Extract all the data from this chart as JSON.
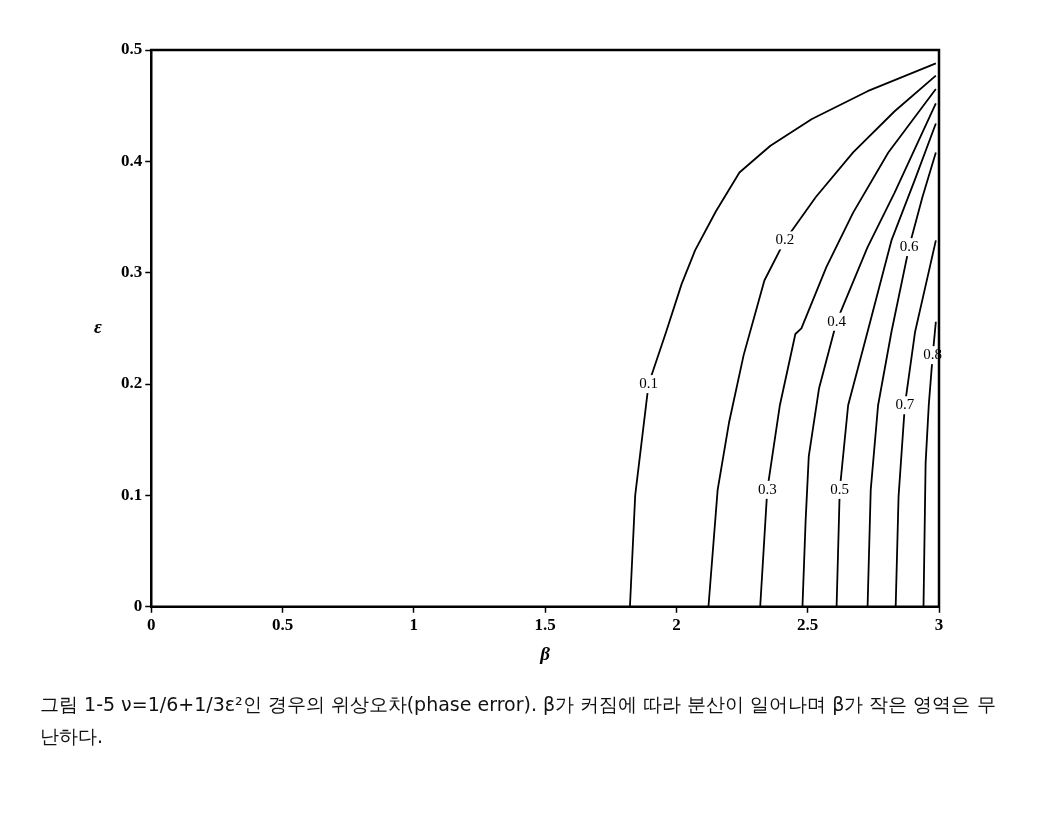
{
  "chart_data": {
    "type": "line",
    "xlabel": "β",
    "ylabel": "ε",
    "xlim": [
      0,
      3
    ],
    "ylim": [
      0,
      0.5
    ],
    "xticks": [
      0,
      0.5,
      1,
      1.5,
      2,
      2.5,
      3
    ],
    "yticks": [
      0,
      0.1,
      0.2,
      0.3,
      0.4,
      0.5
    ],
    "grid": false,
    "legend": false,
    "marker": "none",
    "line_style": "solid",
    "series": [
      {
        "name": "0.1",
        "color": "#000000",
        "x": [
          1.823,
          1.843,
          1.894,
          1.961,
          2.02,
          2.071,
          2.15,
          2.24,
          2.358,
          2.516,
          2.728,
          2.988
        ],
        "values": [
          0,
          0.1,
          0.2,
          0.247,
          0.29,
          0.32,
          0.355,
          0.39,
          0.414,
          0.438,
          0.463,
          0.488
        ]
      },
      {
        "name": "0.2",
        "color": "#000000",
        "x": [
          2.122,
          2.157,
          2.2,
          2.256,
          2.335,
          2.413,
          2.531,
          2.673,
          2.831,
          2.988
        ],
        "values": [
          0,
          0.105,
          0.165,
          0.226,
          0.293,
          0.329,
          0.368,
          0.408,
          0.445,
          0.477
        ]
      },
      {
        "name": "0.3",
        "color": "#000000",
        "x": [
          2.319,
          2.346,
          2.394,
          2.453,
          2.476,
          2.571,
          2.673,
          2.807,
          2.988
        ],
        "values": [
          0,
          0.105,
          0.181,
          0.245,
          0.25,
          0.305,
          0.354,
          0.408,
          0.465
        ]
      },
      {
        "name": "0.4",
        "color": "#000000",
        "x": [
          2.48,
          2.492,
          2.504,
          2.543,
          2.61,
          2.728,
          2.831,
          2.988
        ],
        "values": [
          0,
          0.077,
          0.135,
          0.196,
          0.256,
          0.323,
          0.372,
          0.452
        ]
      },
      {
        "name": "0.5",
        "color": "#000000",
        "x": [
          2.61,
          2.622,
          2.654,
          2.728,
          2.819,
          2.909,
          2.988
        ],
        "values": [
          0,
          0.105,
          0.181,
          0.247,
          0.329,
          0.384,
          0.434
        ]
      },
      {
        "name": "0.6",
        "color": "#000000",
        "x": [
          2.728,
          2.74,
          2.768,
          2.819,
          2.886,
          2.937,
          2.988
        ],
        "values": [
          0,
          0.105,
          0.181,
          0.247,
          0.323,
          0.368,
          0.408
        ]
      },
      {
        "name": "0.7",
        "color": "#000000",
        "x": [
          2.835,
          2.846,
          2.87,
          2.909,
          2.965,
          2.988
        ],
        "values": [
          0,
          0.099,
          0.181,
          0.247,
          0.305,
          0.329
        ]
      },
      {
        "name": "0.8",
        "color": "#000000",
        "x": [
          2.941,
          2.949,
          2.961,
          2.976,
          2.988
        ],
        "values": [
          0,
          0.129,
          0.181,
          0.226,
          0.256
        ]
      }
    ],
    "annotations": [
      "그림 1-5  ν=1/6+1/3ε²인 경우의 위상오차(phase error). β가 커짐에 따라 분산이 일어나며 β가 작은 영역은 무난하다."
    ]
  }
}
